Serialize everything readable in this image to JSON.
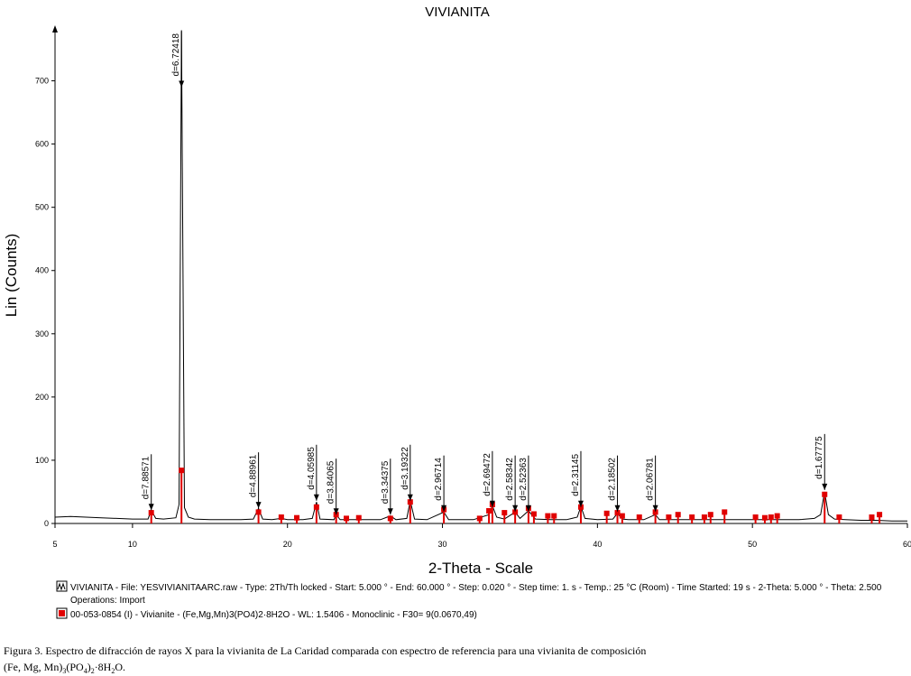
{
  "chart_data": {
    "type": "line",
    "title": "VIVIANITA",
    "y_label": "Lin (Counts)",
    "x_label": "2-Theta - Scale",
    "xlim": [
      5,
      60
    ],
    "ylim": [
      0,
      785
    ],
    "xticks": [
      5,
      10,
      20,
      30,
      40,
      50,
      60
    ],
    "yticks": [
      0,
      100,
      200,
      300,
      400,
      500,
      600,
      700
    ],
    "series": [
      {
        "name": "VIVIANITA - File: YESVIVIANITAARC.raw - Type: 2Th/Th locked - Start: 5.000 ° - End: 60.000 ° - Step: 0.020 ° - Step time: 1. s - Temp.: 25 °C (Room) - Time Started: 19 s - 2-Theta: 5.000 ° - Theta: 2.500",
        "note": "Operations: Import",
        "color": "#000000",
        "x": [
          5,
          6,
          7,
          8,
          9,
          10,
          11,
          11.21,
          11.5,
          12,
          12.8,
          13.0,
          13.16,
          13.35,
          13.6,
          14,
          15,
          16,
          17,
          17.8,
          18.13,
          18.4,
          19,
          19.6,
          20,
          21,
          21.6,
          21.87,
          22.1,
          23,
          23.14,
          23.4,
          24,
          25,
          26,
          26.64,
          27,
          27.7,
          27.92,
          28.2,
          29,
          30.09,
          30.4,
          31,
          32,
          33.0,
          33.22,
          33.5,
          34,
          34.69,
          35,
          35.55,
          36,
          37,
          38,
          38.7,
          38.93,
          39.2,
          40,
          41,
          41.29,
          41.6,
          42,
          43,
          43.74,
          44,
          45,
          46,
          47,
          48,
          49,
          50,
          51,
          52,
          53,
          54,
          54.4,
          54.66,
          54.9,
          55.3,
          56,
          57,
          58,
          59,
          60
        ],
        "values": [
          10,
          11,
          10,
          9,
          8,
          7,
          7,
          21,
          8,
          7,
          9,
          30,
          780,
          25,
          10,
          7,
          6,
          6,
          6,
          7,
          24,
          7,
          6,
          8,
          6,
          6,
          8,
          34,
          7,
          6,
          14,
          6,
          6,
          6,
          6,
          12,
          6,
          8,
          36,
          7,
          6,
          18,
          6,
          6,
          6,
          14,
          28,
          10,
          7,
          18,
          8,
          20,
          7,
          6,
          6,
          10,
          27,
          8,
          6,
          7,
          16,
          7,
          6,
          6,
          14,
          6,
          6,
          6,
          6,
          6,
          6,
          6,
          6,
          6,
          6,
          8,
          14,
          50,
          14,
          7,
          6,
          5,
          5,
          4,
          4
        ]
      },
      {
        "name": "00-053-0854 (I) - Vivianite - (Fe,Mg,Mn)3(PO4)2·8H2O - WL: 1.5406 - Monoclinic - F30=  9(0.0670,49)",
        "color": "#e00000",
        "x": [
          11.21,
          13.16,
          18.13,
          19.6,
          20.6,
          21.87,
          23.14,
          23.8,
          24.6,
          26.64,
          27.92,
          30.09,
          32.4,
          33.0,
          33.22,
          34.0,
          34.69,
          35.55,
          35.9,
          36.8,
          37.2,
          38.93,
          40.6,
          41.29,
          41.6,
          42.7,
          43.74,
          44.6,
          45.2,
          46.1,
          46.9,
          47.3,
          48.2,
          50.2,
          50.8,
          51.2,
          51.6,
          54.66,
          55.6,
          57.7,
          58.2
        ],
        "values": [
          17,
          84,
          18,
          10,
          9,
          26,
          14,
          8,
          9,
          8,
          34,
          22,
          8,
          20,
          30,
          17,
          18,
          24,
          15,
          12,
          12,
          26,
          16,
          17,
          12,
          10,
          18,
          10,
          14,
          10,
          10,
          14,
          18,
          10,
          9,
          10,
          12,
          46,
          10,
          10,
          14
        ]
      }
    ],
    "annotations": [
      {
        "label": "d=7.88571",
        "x": 11.21,
        "y": 21
      },
      {
        "label": "d=6.72418",
        "x": 13.16,
        "y": 690
      },
      {
        "label": "d=4.88961",
        "x": 18.13,
        "y": 24
      },
      {
        "label": "d=4.05985",
        "x": 21.87,
        "y": 36
      },
      {
        "label": "d=3.84065",
        "x": 23.14,
        "y": 14
      },
      {
        "label": "d=3.34375",
        "x": 26.64,
        "y": 14
      },
      {
        "label": "d=3.19322",
        "x": 27.92,
        "y": 36
      },
      {
        "label": "d=2.96714",
        "x": 30.09,
        "y": 19
      },
      {
        "label": "d=2.69472",
        "x": 33.22,
        "y": 26
      },
      {
        "label": "d=2.58342",
        "x": 34.69,
        "y": 19
      },
      {
        "label": "d=2.52363",
        "x": 35.55,
        "y": 19
      },
      {
        "label": "d=2.31145",
        "x": 38.93,
        "y": 26
      },
      {
        "label": "d=2.18502",
        "x": 41.29,
        "y": 19
      },
      {
        "label": "d=2.06781",
        "x": 43.74,
        "y": 19
      },
      {
        "label": "d=1.67775",
        "x": 54.66,
        "y": 53
      }
    ],
    "caption": {
      "line1": "Figura 3. Espectro de difracción de rayos X para la vivianita de La Caridad comparada con espectro de referencia para una vivianita de composición",
      "line2": [
        "(Fe, Mg, Mn)",
        "3",
        "(PO",
        "4",
        ")",
        "2",
        "·8H",
        "2",
        "O."
      ]
    }
  }
}
